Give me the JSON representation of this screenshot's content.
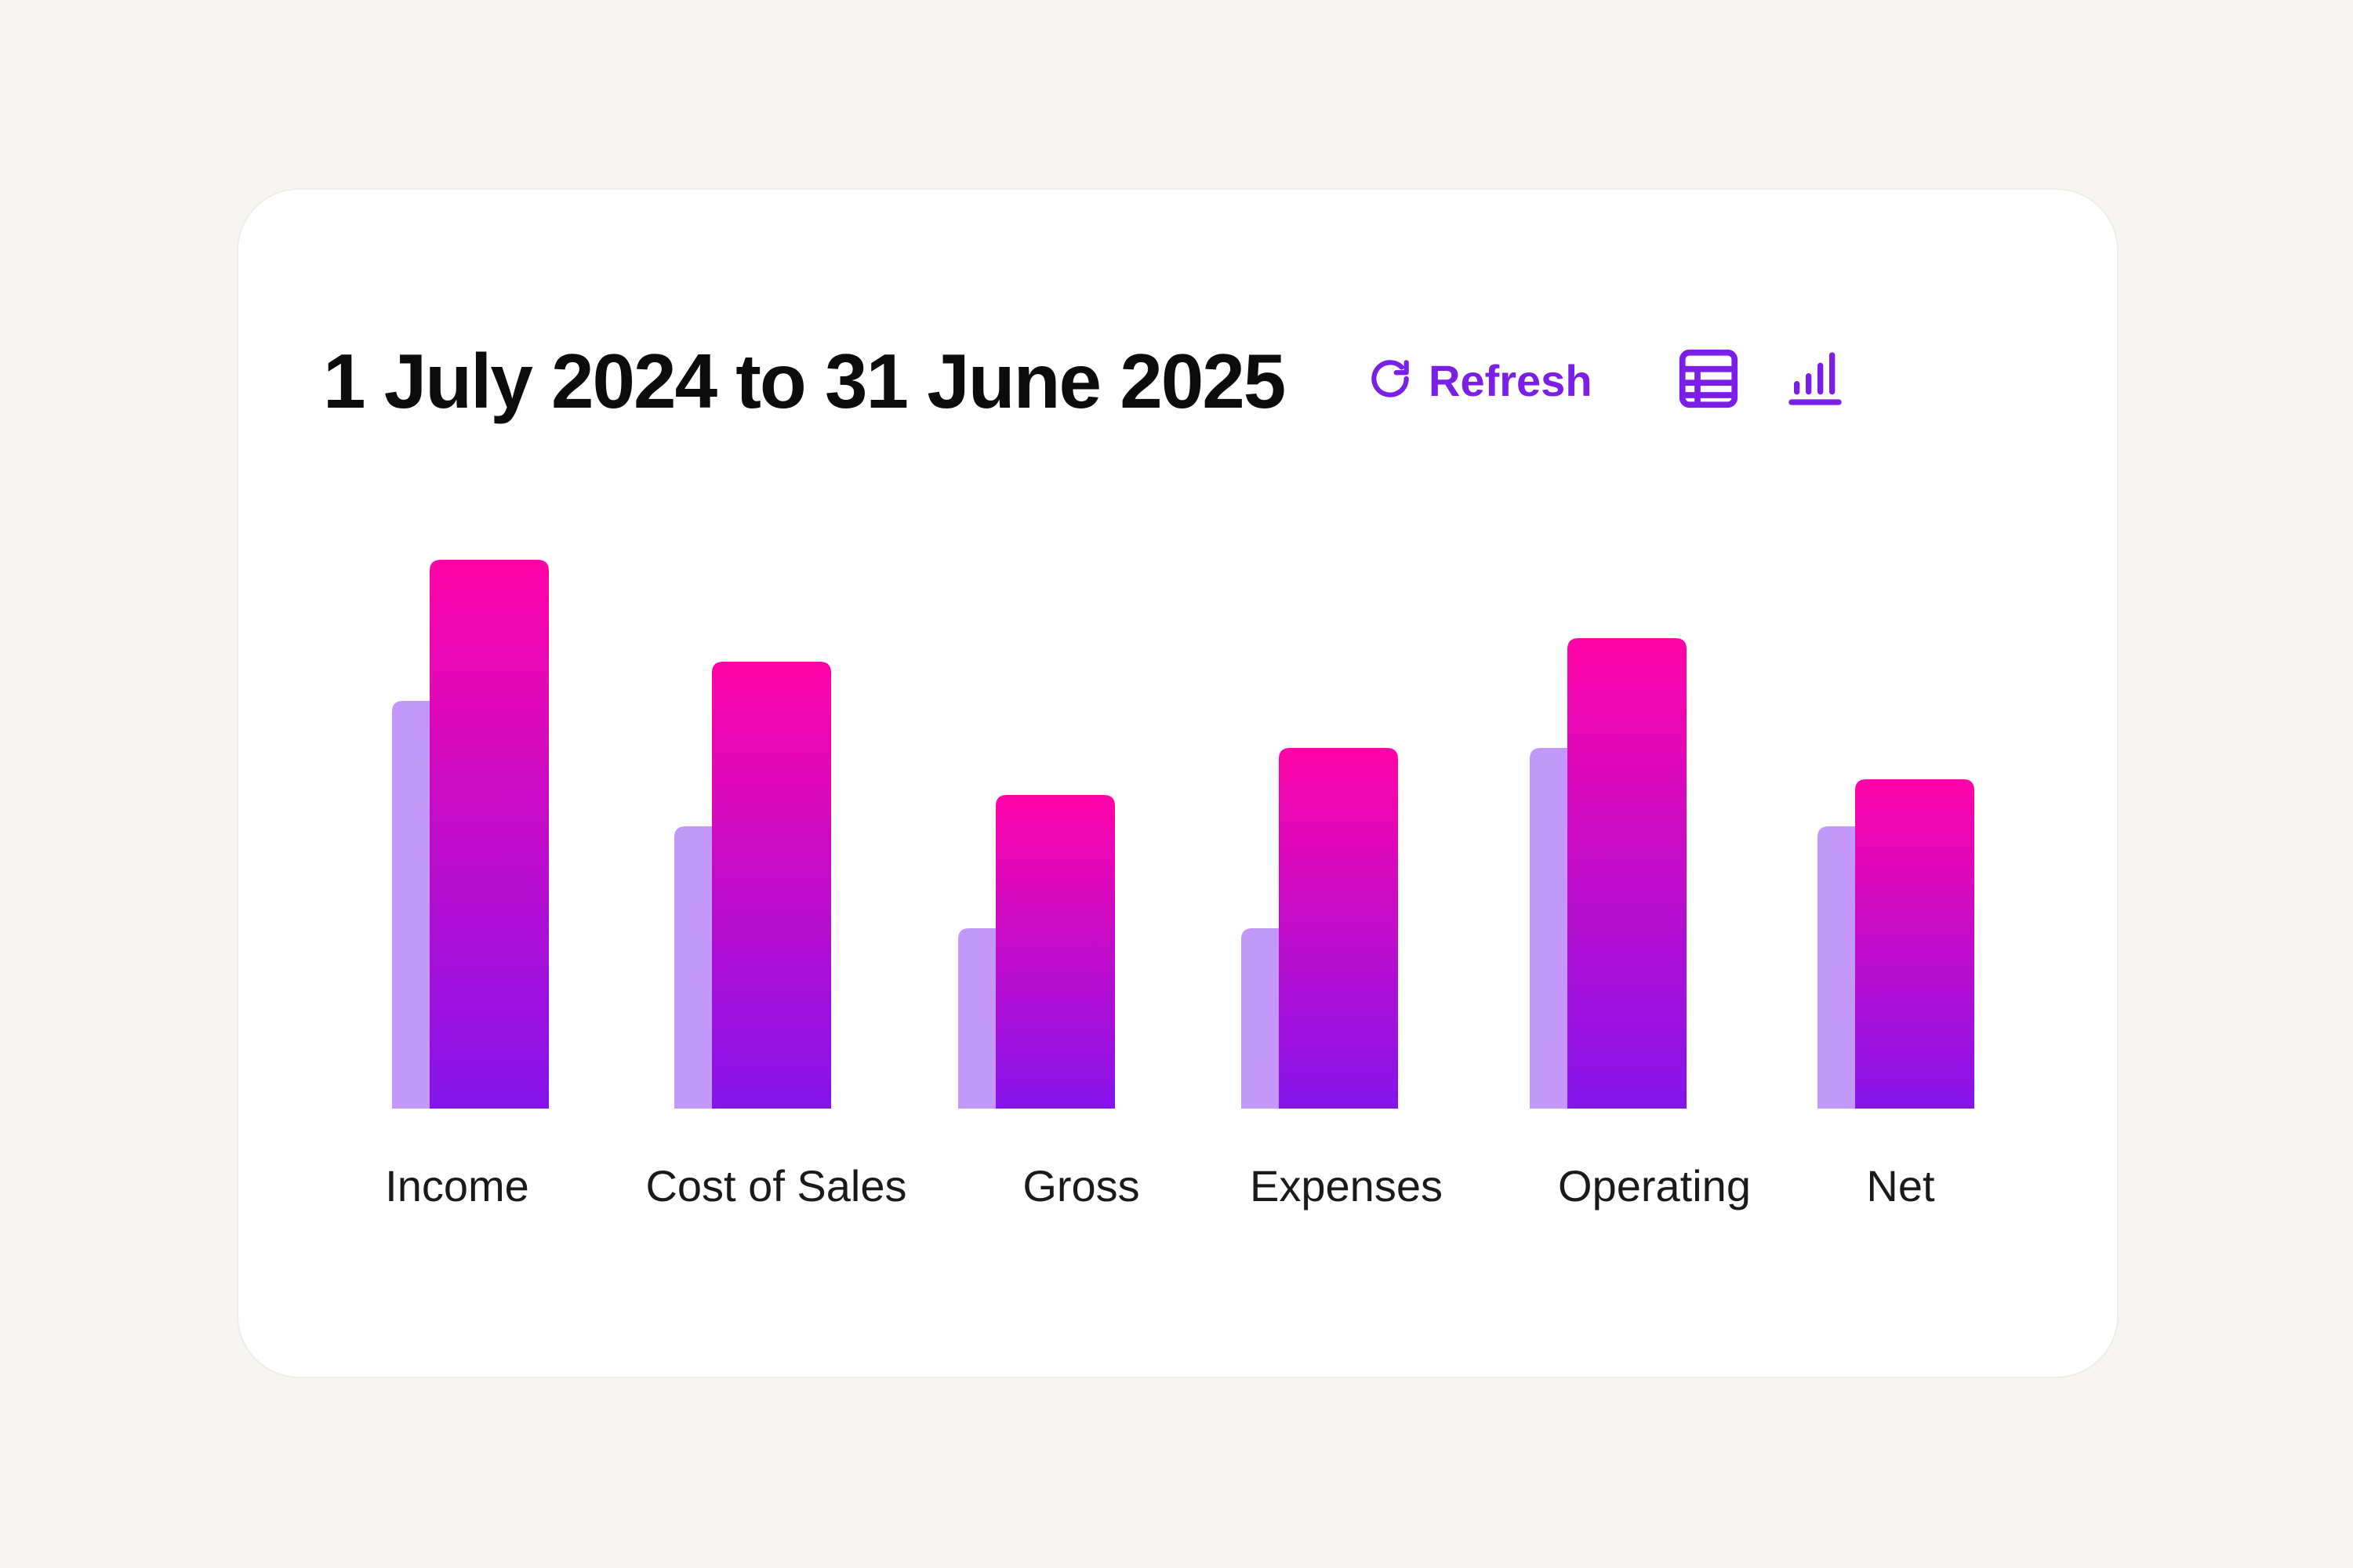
{
  "header": {
    "title": "1 July 2024 to 31 June 2025",
    "refresh_label": "Refresh",
    "refresh_icon": "refresh-icon",
    "table_view_icon": "table-icon",
    "chart_view_icon": "bar-chart-icon"
  },
  "colors": {
    "accent": "#7b1fe6",
    "bar_top": "#ff04a8",
    "bar_bottom": "#8414ec",
    "shadow_bar": "#c497fb",
    "background": "#f6f5f1",
    "card": "#ffffff"
  },
  "chart_data": {
    "type": "bar",
    "categories": [
      "Income",
      "Cost of Sales",
      "Gross",
      "Expenses",
      "Operating",
      "Net"
    ],
    "series": [
      {
        "values": [
          52,
          36,
          23,
          23,
          46,
          36
        ]
      },
      {
        "values": [
          70,
          57,
          40,
          46,
          60,
          42
        ]
      }
    ],
    "ylim": [
      0,
      70
    ],
    "title": "",
    "xlabel": "",
    "ylabel": "",
    "grid": false,
    "legend": "none"
  }
}
